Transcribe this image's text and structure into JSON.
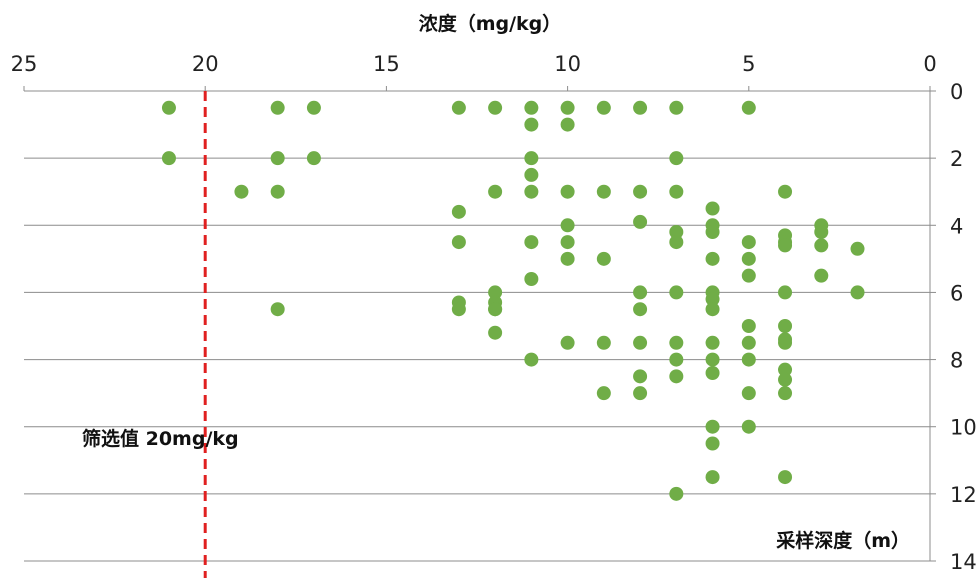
{
  "chart_data": {
    "type": "scatter",
    "xlabel": "浓度（mg/kg）",
    "ylabel": "采样深度（m）",
    "annotation": "筛选值 20mg/kg",
    "xlim": [
      25,
      0
    ],
    "ylim": [
      0,
      14
    ],
    "x_ticks": [
      "25",
      "20",
      "15",
      "10",
      "5",
      "0"
    ],
    "y_ticks": [
      "0",
      "2",
      "4",
      "6",
      "8",
      "10",
      "12",
      "14"
    ],
    "x_axis_position": "top",
    "x_axis_reversed": true,
    "y_axis_position": "right",
    "grid": "horizontal",
    "reference_line": {
      "x": 20,
      "style": "dashed",
      "color": "#e02020"
    },
    "marker_color": "#70ad47",
    "series": [
      {
        "x": [
          21,
          18,
          17,
          13,
          12,
          11,
          10,
          9,
          8,
          7,
          5,
          11,
          10,
          21,
          18,
          17,
          11,
          7,
          11,
          19,
          18,
          12,
          11,
          10,
          9,
          8,
          7,
          4,
          13,
          6,
          8,
          10,
          7,
          6,
          6,
          3,
          3,
          4,
          13,
          11,
          10,
          7,
          5,
          4,
          4,
          3,
          2,
          10,
          9,
          6,
          5,
          11,
          5,
          3,
          12,
          8,
          7,
          6,
          4,
          2,
          6,
          12,
          13,
          12,
          18,
          13,
          12,
          8,
          6,
          5,
          4,
          12,
          10,
          9,
          8,
          7,
          6,
          5,
          4,
          4,
          11,
          7,
          6,
          5,
          6,
          4,
          8,
          7,
          4,
          9,
          8,
          5,
          4,
          6,
          5,
          6,
          6,
          4,
          7
        ],
        "y": [
          0.5,
          0.5,
          0.5,
          0.5,
          0.5,
          0.5,
          0.5,
          0.5,
          0.5,
          0.5,
          0.5,
          1.0,
          1.0,
          2.0,
          2.0,
          2.0,
          2.0,
          2.0,
          2.5,
          3.0,
          3.0,
          3.0,
          3.0,
          3.0,
          3.0,
          3.0,
          3.0,
          3.0,
          3.6,
          3.5,
          3.9,
          4.0,
          4.2,
          4.0,
          4.2,
          4.0,
          4.2,
          4.3,
          4.5,
          4.5,
          4.5,
          4.5,
          4.5,
          4.5,
          4.6,
          4.6,
          4.7,
          5.0,
          5.0,
          5.0,
          5.0,
          5.6,
          5.5,
          5.5,
          6.0,
          6.0,
          6.0,
          6.0,
          6.0,
          6.0,
          6.2,
          6.3,
          6.3,
          6.5,
          6.5,
          6.5,
          6.5,
          6.5,
          6.5,
          7.0,
          7.0,
          7.2,
          7.5,
          7.5,
          7.5,
          7.5,
          7.5,
          7.5,
          7.4,
          7.5,
          8.0,
          8.0,
          8.0,
          8.0,
          8.4,
          8.3,
          8.5,
          8.5,
          8.6,
          9.0,
          9.0,
          9.0,
          9.0,
          10.0,
          10.0,
          10.5,
          11.5,
          11.5,
          12.0
        ]
      }
    ]
  }
}
